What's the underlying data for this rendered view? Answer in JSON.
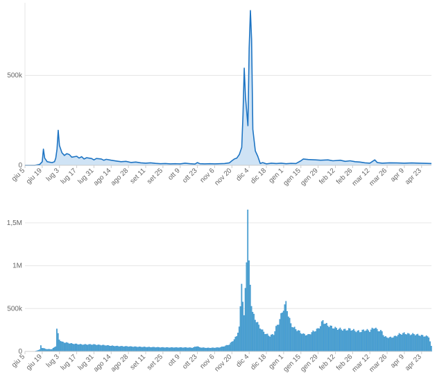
{
  "colors": {
    "line": "#1d74c3",
    "area": "#cfe3f5",
    "bar_fill": "#55a3c8",
    "bar_edge": "#2b8fd6",
    "grid": "#e6e6e6",
    "text": "#666666"
  },
  "chart_data": [
    {
      "type": "area",
      "title": "",
      "xlabel": "",
      "ylabel": "",
      "ylim": [
        0,
        880000
      ],
      "y_ticks": [
        {
          "value": 0,
          "label": "0"
        },
        {
          "value": 500000,
          "label": "500k"
        }
      ],
      "x_tick_labels": [
        "giu 5",
        "giu 19",
        "lug 3",
        "lug 17",
        "lug 31",
        "ago 14",
        "ago 28",
        "set 11",
        "set 25",
        "ott 9",
        "ott 23",
        "nov 6",
        "nov 20",
        "dic 4",
        "dic 18",
        "gen 1",
        "gen 15",
        "gen 29",
        "feb 12",
        "feb 26",
        "mar 12",
        "mar 26",
        "apr 9",
        "apr 23"
      ],
      "x_range_days": [
        0,
        330
      ],
      "grid": true,
      "series": [
        {
          "points": [
            [
              0,
              0
            ],
            [
              8,
              0
            ],
            [
              12,
              5000
            ],
            [
              14,
              20000
            ],
            [
              15,
              90000
            ],
            [
              16,
              40000
            ],
            [
              18,
              20000
            ],
            [
              22,
              15000
            ],
            [
              24,
              20000
            ],
            [
              25,
              40000
            ],
            [
              26,
              90000
            ],
            [
              27,
              195000
            ],
            [
              28,
              110000
            ],
            [
              30,
              70000
            ],
            [
              32,
              55000
            ],
            [
              34,
              65000
            ],
            [
              36,
              60000
            ],
            [
              38,
              45000
            ],
            [
              42,
              50000
            ],
            [
              44,
              40000
            ],
            [
              46,
              48000
            ],
            [
              48,
              35000
            ],
            [
              50,
              42000
            ],
            [
              54,
              38000
            ],
            [
              56,
              30000
            ],
            [
              58,
              38000
            ],
            [
              62,
              35000
            ],
            [
              64,
              28000
            ],
            [
              66,
              33000
            ],
            [
              70,
              28000
            ],
            [
              74,
              24000
            ],
            [
              78,
              20000
            ],
            [
              82,
              22000
            ],
            [
              86,
              16000
            ],
            [
              90,
              18000
            ],
            [
              94,
              14000
            ],
            [
              98,
              12000
            ],
            [
              102,
              14000
            ],
            [
              106,
              11000
            ],
            [
              110,
              9000
            ],
            [
              114,
              10000
            ],
            [
              118,
              8000
            ],
            [
              122,
              9000
            ],
            [
              126,
              8000
            ],
            [
              130,
              12000
            ],
            [
              134,
              9000
            ],
            [
              138,
              7000
            ],
            [
              140,
              15000
            ],
            [
              142,
              9000
            ],
            [
              146,
              8000
            ],
            [
              150,
              9000
            ],
            [
              154,
              8000
            ],
            [
              158,
              9000
            ],
            [
              162,
              10000
            ],
            [
              166,
              14000
            ],
            [
              168,
              25000
            ],
            [
              170,
              35000
            ],
            [
              172,
              40000
            ],
            [
              174,
              60000
            ],
            [
              176,
              100000
            ],
            [
              177,
              280000
            ],
            [
              178,
              540000
            ],
            [
              179,
              380000
            ],
            [
              181,
              220000
            ],
            [
              182,
              650000
            ],
            [
              183,
              860000
            ],
            [
              184,
              700000
            ],
            [
              185,
              200000
            ],
            [
              187,
              80000
            ],
            [
              189,
              50000
            ],
            [
              191,
              10000
            ],
            [
              193,
              15000
            ],
            [
              196,
              8000
            ],
            [
              200,
              12000
            ],
            [
              204,
              10000
            ],
            [
              208,
              12000
            ],
            [
              212,
              9000
            ],
            [
              216,
              11000
            ],
            [
              220,
              10000
            ],
            [
              224,
              25000
            ],
            [
              226,
              35000
            ],
            [
              230,
              32000
            ],
            [
              236,
              30000
            ],
            [
              240,
              28000
            ],
            [
              246,
              30000
            ],
            [
              250,
              25000
            ],
            [
              256,
              28000
            ],
            [
              260,
              22000
            ],
            [
              264,
              25000
            ],
            [
              268,
              20000
            ],
            [
              272,
              18000
            ],
            [
              276,
              14000
            ],
            [
              280,
              12000
            ],
            [
              284,
              30000
            ],
            [
              286,
              15000
            ],
            [
              290,
              12000
            ],
            [
              296,
              14000
            ],
            [
              302,
              13000
            ],
            [
              308,
              12000
            ],
            [
              314,
              13000
            ],
            [
              320,
              12000
            ],
            [
              326,
              11000
            ],
            [
              330,
              10000
            ]
          ]
        }
      ]
    },
    {
      "type": "bar",
      "title": "",
      "xlabel": "",
      "ylabel": "",
      "ylim": [
        0,
        1750000
      ],
      "y_ticks": [
        {
          "value": 0,
          "label": "0"
        },
        {
          "value": 500000,
          "label": "500k"
        },
        {
          "value": 1000000,
          "label": "1M"
        },
        {
          "value": 1500000,
          "label": "1,5M"
        }
      ],
      "x_tick_labels": [
        "giu 5",
        "giu 19",
        "lug 3",
        "lug 17",
        "lug 31",
        "ago 14",
        "ago 28",
        "set 11",
        "set 25",
        "ott 9",
        "ott 23",
        "nov 6",
        "nov 20",
        "dic 4",
        "dic 18",
        "gen 1",
        "gen 15",
        "gen 29",
        "feb 12",
        "feb 26",
        "mar 12",
        "mar 26",
        "apr 9",
        "apr 23"
      ],
      "x_range_days": [
        0,
        330
      ],
      "grid": true,
      "series": [
        {
          "profile": [
            [
              0,
              0
            ],
            [
              8,
              0
            ],
            [
              12,
              20000
            ],
            [
              13,
              70000
            ],
            [
              14,
              40000
            ],
            [
              18,
              25000
            ],
            [
              22,
              25000
            ],
            [
              25,
              60000
            ],
            [
              26,
              260000
            ],
            [
              27,
              200000
            ],
            [
              28,
              140000
            ],
            [
              30,
              110000
            ],
            [
              34,
              100000
            ],
            [
              38,
              90000
            ],
            [
              42,
              85000
            ],
            [
              46,
              80000
            ],
            [
              50,
              80000
            ],
            [
              56,
              80000
            ],
            [
              60,
              75000
            ],
            [
              66,
              70000
            ],
            [
              70,
              65000
            ],
            [
              76,
              60000
            ],
            [
              82,
              58000
            ],
            [
              88,
              55000
            ],
            [
              94,
              52000
            ],
            [
              100,
              50000
            ],
            [
              106,
              48000
            ],
            [
              112,
              46000
            ],
            [
              118,
              45000
            ],
            [
              124,
              45000
            ],
            [
              130,
              45000
            ],
            [
              136,
              42000
            ],
            [
              140,
              60000
            ],
            [
              142,
              45000
            ],
            [
              148,
              40000
            ],
            [
              154,
              42000
            ],
            [
              158,
              45000
            ],
            [
              162,
              60000
            ],
            [
              166,
              80000
            ],
            [
              168,
              110000
            ],
            [
              170,
              140000
            ],
            [
              172,
              180000
            ],
            [
              174,
              280000
            ],
            [
              175,
              500000
            ],
            [
              176,
              820000
            ],
            [
              177,
              600000
            ],
            [
              178,
              400000
            ],
            [
              179,
              720000
            ],
            [
              180,
              1100000
            ],
            [
              181,
              1670000
            ],
            [
              182,
              1000000
            ],
            [
              183,
              780000
            ],
            [
              184,
              560000
            ],
            [
              185,
              450000
            ],
            [
              187,
              380000
            ],
            [
              190,
              300000
            ],
            [
              193,
              240000
            ],
            [
              196,
              200000
            ],
            [
              199,
              180000
            ],
            [
              202,
              200000
            ],
            [
              204,
              280000
            ],
            [
              206,
              330000
            ],
            [
              208,
              420000
            ],
            [
              210,
              500000
            ],
            [
              212,
              560000
            ],
            [
              214,
              420000
            ],
            [
              216,
              320000
            ],
            [
              218,
              280000
            ],
            [
              222,
              240000
            ],
            [
              226,
              200000
            ],
            [
              230,
              190000
            ],
            [
              234,
              230000
            ],
            [
              238,
              260000
            ],
            [
              240,
              300000
            ],
            [
              242,
              360000
            ],
            [
              244,
              320000
            ],
            [
              248,
              290000
            ],
            [
              252,
              270000
            ],
            [
              256,
              260000
            ],
            [
              260,
              250000
            ],
            [
              264,
              260000
            ],
            [
              268,
              240000
            ],
            [
              272,
              230000
            ],
            [
              276,
              250000
            ],
            [
              280,
              240000
            ],
            [
              284,
              280000
            ],
            [
              286,
              250000
            ],
            [
              290,
              230000
            ],
            [
              292,
              170000
            ],
            [
              296,
              160000
            ],
            [
              300,
              170000
            ],
            [
              304,
              200000
            ],
            [
              308,
              210000
            ],
            [
              312,
              200000
            ],
            [
              316,
              200000
            ],
            [
              320,
              190000
            ],
            [
              324,
              180000
            ],
            [
              328,
              170000
            ],
            [
              330,
              60000
            ]
          ]
        }
      ]
    }
  ]
}
